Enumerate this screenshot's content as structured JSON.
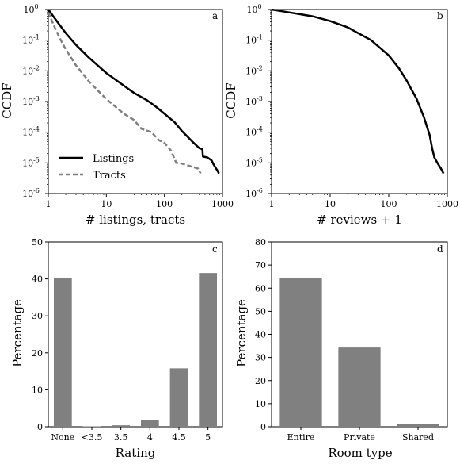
{
  "chart_data": [
    {
      "panel": "a",
      "type": "line",
      "xlabel": "# listings, tracts",
      "ylabel": "CCDF",
      "xscale": "log",
      "yscale": "log",
      "xlim": [
        1,
        1000
      ],
      "ylim": [
        1e-06,
        1
      ],
      "x_ticks": [
        "1",
        "10",
        "100",
        "1000"
      ],
      "y_ticks": [
        "10^-6",
        "10^-5",
        "10^-4",
        "10^-3",
        "10^-2",
        "10^-1",
        "10^0"
      ],
      "legend_position": "lower-left",
      "series": [
        {
          "name": "Listings",
          "style": "solid",
          "color": "#000000",
          "points": [
            [
              1,
              1
            ],
            [
              1.5,
              0.35
            ],
            [
              2,
              0.17
            ],
            [
              3,
              0.07
            ],
            [
              5,
              0.027
            ],
            [
              10,
              0.0085
            ],
            [
              20,
              0.0033
            ],
            [
              30,
              0.0019
            ],
            [
              50,
              0.0011
            ],
            [
              70,
              0.0007
            ],
            [
              100,
              0.0004
            ],
            [
              150,
              0.00021
            ],
            [
              200,
              0.00011
            ],
            [
              300,
              5e-05
            ],
            [
              400,
              3e-05
            ],
            [
              450,
              2.8e-05
            ],
            [
              460,
              1.6e-05
            ],
            [
              550,
              1.5e-05
            ],
            [
              650,
              1.2e-05
            ],
            [
              700,
              9e-06
            ],
            [
              800,
              6e-06
            ],
            [
              870,
              4.5e-06
            ]
          ]
        },
        {
          "name": "Tracts",
          "style": "dashed",
          "color": "#808080",
          "points": [
            [
              1,
              0.8
            ],
            [
              1.3,
              0.25
            ],
            [
              1.6,
              0.11
            ],
            [
              2,
              0.05
            ],
            [
              3,
              0.015
            ],
            [
              5,
              0.0045
            ],
            [
              10,
              0.0012
            ],
            [
              20,
              0.0004
            ],
            [
              30,
              0.00025
            ],
            [
              40,
              0.00013
            ],
            [
              60,
              0.0001
            ],
            [
              80,
              5.5e-05
            ],
            [
              100,
              4.5e-05
            ],
            [
              130,
              2.5e-05
            ],
            [
              160,
              1e-05
            ],
            [
              200,
              9.5e-06
            ],
            [
              300,
              7.5e-06
            ],
            [
              380,
              6.5e-06
            ],
            [
              420,
              4.5e-06
            ]
          ]
        }
      ]
    },
    {
      "panel": "b",
      "type": "line",
      "xlabel": "# reviews + 1",
      "ylabel": "CCDF",
      "xscale": "log",
      "yscale": "log",
      "xlim": [
        1,
        1000
      ],
      "ylim": [
        1e-06,
        1
      ],
      "x_ticks": [
        "1",
        "10",
        "100",
        "1000"
      ],
      "y_ticks": [
        "10^-6",
        "10^-5",
        "10^-4",
        "10^-3",
        "10^-2",
        "10^-1",
        "10^0"
      ],
      "series": [
        {
          "style": "solid",
          "color": "#000000",
          "points": [
            [
              1,
              1
            ],
            [
              2,
              0.8
            ],
            [
              5,
              0.6
            ],
            [
              10,
              0.42
            ],
            [
              20,
              0.26
            ],
            [
              50,
              0.1
            ],
            [
              100,
              0.032
            ],
            [
              150,
              0.012
            ],
            [
              200,
              0.005
            ],
            [
              300,
              0.0012
            ],
            [
              400,
              0.0003
            ],
            [
              500,
              8e-05
            ],
            [
              550,
              3e-05
            ],
            [
              600,
              1.5e-05
            ],
            [
              700,
              9e-06
            ],
            [
              800,
              6e-06
            ],
            [
              860,
              4.5e-06
            ]
          ]
        }
      ]
    },
    {
      "panel": "c",
      "type": "bar",
      "xlabel": "Rating",
      "ylabel": "Percentage",
      "categories": [
        "None",
        "<3.5",
        "3.5",
        "4",
        "4.5",
        "5"
      ],
      "values": [
        40.2,
        0.1,
        0.4,
        1.8,
        15.8,
        41.6
      ],
      "ylim": [
        0,
        50
      ],
      "y_ticks": [
        0,
        10,
        20,
        30,
        40,
        50
      ],
      "bar_color": "#808080"
    },
    {
      "panel": "d",
      "type": "bar",
      "xlabel": "Room type",
      "ylabel": "Percentage",
      "categories": [
        "Entire",
        "Private",
        "Shared"
      ],
      "values": [
        64.4,
        34.3,
        1.3
      ],
      "ylim": [
        0,
        80
      ],
      "y_ticks": [
        0,
        10,
        20,
        30,
        40,
        50,
        60,
        70,
        80
      ],
      "bar_color": "#808080"
    }
  ]
}
